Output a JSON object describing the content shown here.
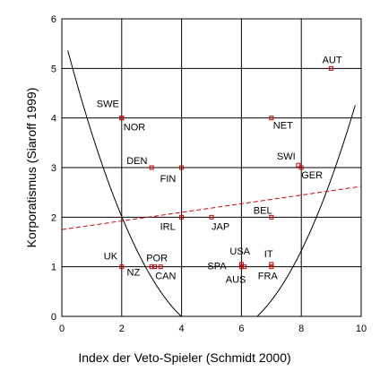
{
  "chart_data": {
    "type": "scatter",
    "title": "",
    "xlabel": "Index der Veto-Spieler (Schmidt 2000)",
    "ylabel": "Korporatismus (Siaroff 1999)",
    "xlim": [
      0,
      10
    ],
    "ylim": [
      0,
      6
    ],
    "x_ticks": [
      "0",
      "2",
      "4",
      "6",
      "8",
      "10"
    ],
    "y_ticks": [
      "0",
      "1",
      "2",
      "3",
      "4",
      "5",
      "6"
    ],
    "grid": true,
    "legend": "none",
    "points": [
      {
        "label": "AUT",
        "x": 9.0,
        "y": 5.0
      },
      {
        "label": "SWE",
        "x": 2.0,
        "y": 4.0
      },
      {
        "label": "NOR",
        "x": 2.0,
        "y": 4.0
      },
      {
        "label": "NET",
        "x": 7.0,
        "y": 4.0
      },
      {
        "label": "DEN",
        "x": 3.0,
        "y": 3.0
      },
      {
        "label": "FIN",
        "x": 4.0,
        "y": 3.0
      },
      {
        "label": "SWI",
        "x": 7.9,
        "y": 3.05
      },
      {
        "label": "GER",
        "x": 8.0,
        "y": 3.0
      },
      {
        "label": "BEL",
        "x": 7.0,
        "y": 2.0
      },
      {
        "label": "IRL",
        "x": 4.0,
        "y": 2.0
      },
      {
        "label": "JAP",
        "x": 5.0,
        "y": 2.0
      },
      {
        "label": "UK",
        "x": 2.0,
        "y": 1.0
      },
      {
        "label": "POR",
        "x": 3.0,
        "y": 1.0
      },
      {
        "label": "NZ",
        "x": 3.1,
        "y": 1.0
      },
      {
        "label": "CAN",
        "x": 3.3,
        "y": 1.0
      },
      {
        "label": "SPA",
        "x": 6.0,
        "y": 1.0
      },
      {
        "label": "USA",
        "x": 6.0,
        "y": 1.05
      },
      {
        "label": "AUS",
        "x": 6.1,
        "y": 1.0
      },
      {
        "label": "IT",
        "x": 7.0,
        "y": 1.05
      },
      {
        "label": "FRA",
        "x": 7.0,
        "y": 1.0
      }
    ],
    "quadratic_fit": {
      "a": 0.2236,
      "b": -2.351,
      "c": 5.822
    },
    "linear_fit": {
      "intercept": 1.75,
      "slope": 0.087
    },
    "colors": {
      "points": "#cc0000",
      "linear_fit": "#cc0000",
      "quadratic_fit": "#000000",
      "grid": "#000000"
    }
  }
}
